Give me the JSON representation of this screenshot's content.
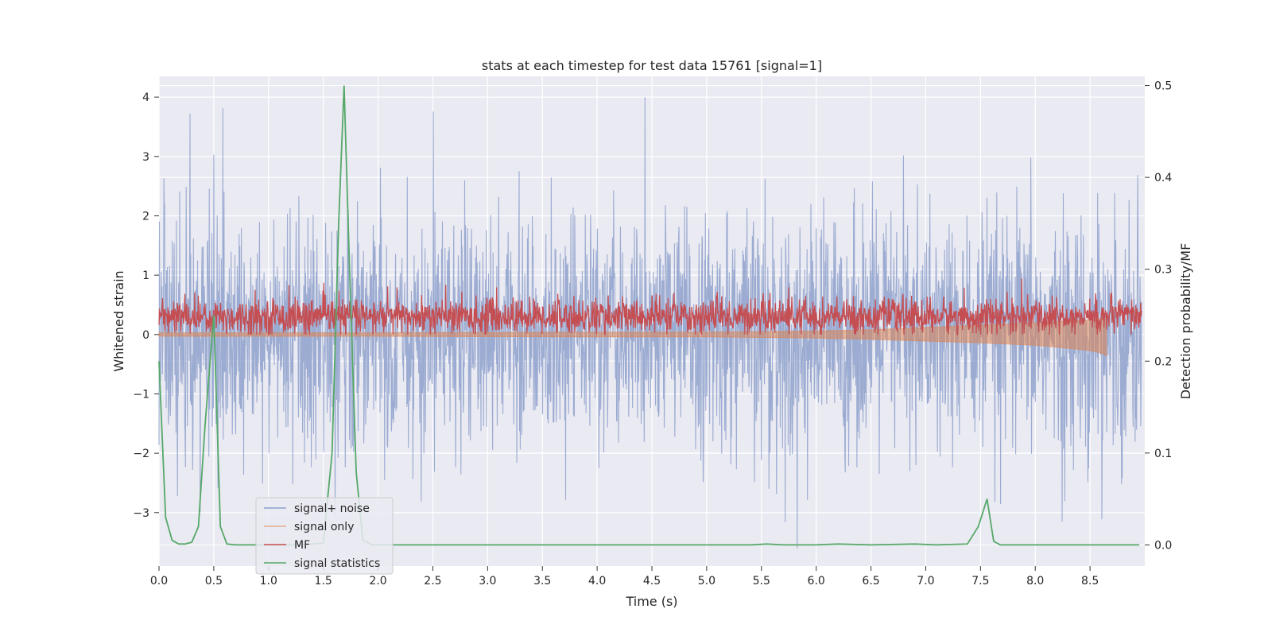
{
  "chart_data": {
    "type": "line",
    "title": "stats at each timestep for test data 15761 [signal=1]",
    "xlabel": "Time (s)",
    "ylabel_left": "Whitened strain",
    "ylabel_right": "Detection probability/MF",
    "xlim": [
      0.0,
      9.0
    ],
    "ylim_left": [
      -3.9,
      4.35
    ],
    "ylim_right": [
      -0.023,
      0.51
    ],
    "x_ticks": [
      "0.0",
      "0.5",
      "1.0",
      "1.5",
      "2.0",
      "2.5",
      "3.0",
      "3.5",
      "4.0",
      "4.5",
      "5.0",
      "5.5",
      "6.0",
      "6.5",
      "7.0",
      "7.5",
      "8.0",
      "8.5"
    ],
    "y_left_ticks": [
      "−3",
      "−2",
      "−1",
      "0",
      "1",
      "2",
      "3",
      "4"
    ],
    "y_right_ticks": [
      "0.0",
      "0.1",
      "0.2",
      "0.3",
      "0.4",
      "0.5"
    ],
    "grid": true,
    "legend_position": "lower-left",
    "legend": [
      {
        "label": "signal+ noise",
        "color": "#8da0cb"
      },
      {
        "label": "signal only",
        "color": "#e8a98f"
      },
      {
        "label": "MF",
        "color": "#c44e52"
      },
      {
        "label": "signal statistics",
        "color": "#55a868"
      }
    ],
    "colors": {
      "background": "#eaeaf2",
      "grid": "#ffffff",
      "noise": "#8da0cb",
      "signal": "#dd8452",
      "mf": "#c44e52",
      "stats": "#55a868"
    },
    "series": [
      {
        "name": "signal statistics",
        "axis": "right",
        "x": [
          0.0,
          0.06,
          0.12,
          0.18,
          0.24,
          0.3,
          0.36,
          0.42,
          0.5,
          0.56,
          0.62,
          0.7,
          0.9,
          1.1,
          1.3,
          1.5,
          1.58,
          1.64,
          1.69,
          1.74,
          1.8,
          1.86,
          1.95,
          2.2,
          3.0,
          4.0,
          5.0,
          5.4,
          5.55,
          5.7,
          6.0,
          6.2,
          6.5,
          6.9,
          7.1,
          7.38,
          7.48,
          7.56,
          7.62,
          7.68,
          8.0,
          8.5,
          8.95
        ],
        "y": [
          0.2,
          0.03,
          0.005,
          0.001,
          0.001,
          0.003,
          0.02,
          0.13,
          0.25,
          0.02,
          0.001,
          0.0,
          0.0,
          0.0,
          0.0,
          0.002,
          0.1,
          0.35,
          0.5,
          0.3,
          0.08,
          0.005,
          0.0,
          0.0,
          0.0,
          0.0,
          0.0,
          0.0,
          0.001,
          0.0,
          0.0,
          0.001,
          0.0,
          0.001,
          0.0,
          0.001,
          0.02,
          0.05,
          0.004,
          0.0,
          0.0,
          0.0,
          0.0
        ]
      },
      {
        "name": "signal only",
        "axis": "left",
        "x": [
          0.0,
          2.0,
          4.0,
          5.0,
          5.5,
          6.0,
          6.5,
          7.0,
          7.5,
          8.0,
          8.3,
          8.5,
          8.6,
          8.65
        ],
        "y_upper": [
          0.03,
          0.03,
          0.04,
          0.04,
          0.05,
          0.06,
          0.08,
          0.12,
          0.16,
          0.2,
          0.23,
          0.25,
          0.27,
          0.28
        ],
        "y_lower": [
          -0.03,
          -0.03,
          -0.04,
          -0.04,
          -0.05,
          -0.06,
          -0.08,
          -0.11,
          -0.14,
          -0.18,
          -0.23,
          -0.27,
          -0.31,
          -0.36
        ]
      },
      {
        "name": "signal+ noise",
        "axis": "left",
        "generated": "dense stochastic trace, approx range −3.6 to 4.0, typical amplitude ±2"
      },
      {
        "name": "MF",
        "axis": "left",
        "generated": "dense stochastic trace, approx range 0.0 to 1.0, mean ~0.3"
      }
    ]
  }
}
